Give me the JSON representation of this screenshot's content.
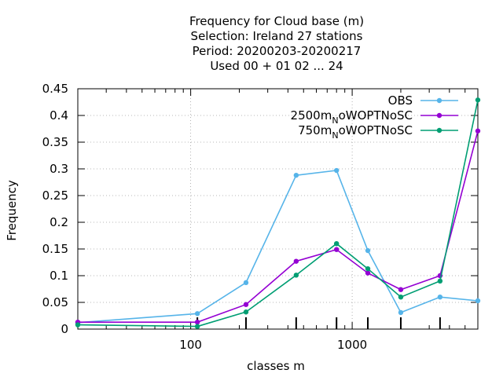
{
  "chart_data": {
    "type": "line",
    "title_lines": [
      "Frequency  for Cloud base (m)",
      "Selection: Ireland     27 stations",
      "Period: 20200203-20200217",
      "Used  00 + 01 02 ... 24"
    ],
    "xlabel": "classes m",
    "ylabel": "Frequency",
    "x_scale": "log",
    "xlim": [
      20,
      6000
    ],
    "ylim": [
      0,
      0.45
    ],
    "y_ticks": [
      "0",
      "0.05",
      "0.1",
      "0.15",
      "0.2",
      "0.25",
      "0.3",
      "0.35",
      "0.4",
      "0.45"
    ],
    "x_ticks": [
      "100",
      "1000"
    ],
    "grid": true,
    "legend_position": "top-right",
    "series": [
      {
        "name": "OBS",
        "color": "#56b4e9",
        "x": [
          20,
          110,
          220,
          450,
          800,
          1250,
          2000,
          3500,
          6000
        ],
        "y": [
          0.012,
          0.029,
          0.087,
          0.288,
          0.297,
          0.147,
          0.031,
          0.06,
          0.053
        ]
      },
      {
        "name": "2500m_NoWOPTNoSC",
        "legend_parts": [
          "2500m",
          "N",
          "oWOPTNoSC"
        ],
        "color": "#9400d3",
        "x": [
          20,
          110,
          220,
          450,
          800,
          1250,
          2000,
          3500,
          6000
        ],
        "y": [
          0.013,
          0.013,
          0.046,
          0.127,
          0.149,
          0.105,
          0.074,
          0.1,
          0.371
        ]
      },
      {
        "name": "750m_NoWOPTNoSC",
        "legend_parts": [
          "750m",
          "N",
          "oWOPTNoSC"
        ],
        "color": "#009e73",
        "x": [
          20,
          110,
          220,
          450,
          800,
          1250,
          2000,
          3500,
          6000
        ],
        "y": [
          0.008,
          0.005,
          0.032,
          0.101,
          0.16,
          0.113,
          0.06,
          0.09,
          0.429
        ]
      }
    ]
  }
}
